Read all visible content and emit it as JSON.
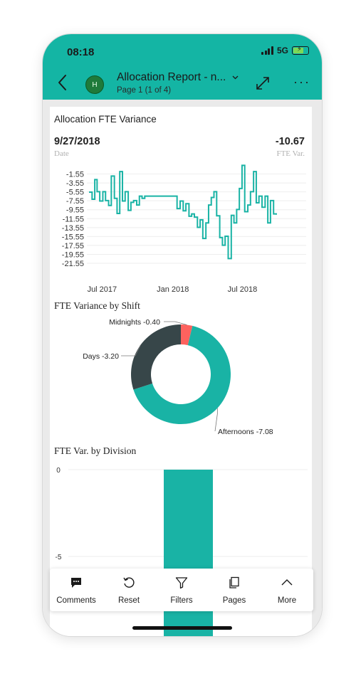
{
  "status_bar": {
    "time": "08:18",
    "network": "5G"
  },
  "header": {
    "avatar_initial": "H",
    "report_title": "Allocation Report - n...",
    "page_indicator": "Page 1 (1 of 4)",
    "back_icon": "chevron-left-icon",
    "expand_icon": "expand-diagonal-icon",
    "more_icon": "more-horizontal-icon"
  },
  "colors": {
    "header_teal": "#14b5a4",
    "series_teal": "#19b3a5",
    "dark_gray": "#374649",
    "red": "#fd625e",
    "avatar_green": "#1f7a3a"
  },
  "report": {
    "variance_card": {
      "title": "Allocation FTE Variance",
      "date_value": "9/27/2018",
      "date_label": "Date",
      "var_value": "-10.67",
      "var_label": "FTE Var."
    },
    "shift_title": "FTE Variance by Shift",
    "division_title": "FTE Var. by Division"
  },
  "chart_data": [
    {
      "type": "line",
      "series": [
        {
          "x": [
            "2017-05-28",
            "2017-06-05",
            "2017-06-12",
            "2017-06-18",
            "2017-06-25",
            "2017-07-03",
            "2017-07-10",
            "2017-07-18",
            "2017-07-25",
            "2017-08-02",
            "2017-08-09",
            "2017-08-16",
            "2017-08-23",
            "2017-08-30",
            "2017-09-07",
            "2017-09-14",
            "2017-09-21",
            "2017-09-29",
            "2017-10-06",
            "2017-10-13",
            "2017-10-20",
            "2017-10-27",
            "2017-11-04",
            "2017-11-11",
            "2017-11-18",
            "2017-11-26",
            "2017-12-04",
            "2017-12-12",
            "2017-12-20",
            "2017-12-28",
            "2018-01-05",
            "2018-01-12",
            "2018-01-20",
            "2018-01-28",
            "2018-02-04",
            "2018-02-12",
            "2018-02-19",
            "2018-02-26",
            "2018-03-06",
            "2018-03-13",
            "2018-03-20",
            "2018-03-28",
            "2018-04-04",
            "2018-04-11",
            "2018-04-18",
            "2018-04-25",
            "2018-05-03",
            "2018-05-10",
            "2018-05-17",
            "2018-05-25",
            "2018-06-02",
            "2018-06-09",
            "2018-06-16",
            "2018-06-23",
            "2018-06-30",
            "2018-07-07",
            "2018-07-15",
            "2018-07-22",
            "2018-07-30",
            "2018-08-06",
            "2018-08-13",
            "2018-08-21",
            "2018-08-29",
            "2018-09-05",
            "2018-09-12",
            "2018-09-20",
            "2018-09-27"
          ],
          "y": [
            -5.6,
            -7.2,
            -2.8,
            -5.5,
            -7.6,
            -5.5,
            -7.5,
            -8.6,
            -2.0,
            -7.0,
            -10.4,
            -1.0,
            -7.6,
            -5.5,
            -9.7,
            -7.9,
            -7.5,
            -8.5,
            -6.5,
            -7.0,
            -6.5,
            -6.5,
            -6.5,
            -6.5,
            -6.5,
            -6.5,
            -6.5,
            -6.5,
            -6.5,
            -6.5,
            -6.5,
            -9.3,
            -7.6,
            -9.8,
            -8.2,
            -11.0,
            -10.5,
            -11.2,
            -13.5,
            -11.8,
            -16.0,
            -12.5,
            -8.5,
            -6.8,
            -5.5,
            -10.9,
            -15.8,
            -17.5,
            -15.5,
            -20.5,
            -10.8,
            -12.5,
            -9.5,
            -4.8,
            0.4,
            -10.0,
            -8.5,
            -5.5,
            -1.0,
            -8.0,
            -6.5,
            -9.0,
            -6.5,
            -12.5,
            -7.5,
            -10.5,
            -10.67
          ]
        }
      ],
      "title": "Allocation FTE Variance",
      "yticks": [
        "-1.55",
        "-3.55",
        "-5.55",
        "-7.55",
        "-9.55",
        "-11.55",
        "-13.55",
        "-15.55",
        "-17.55",
        "-19.55",
        "-21.55"
      ],
      "xticks": [
        "Jul 2017",
        "Jan 2018",
        "Jul 2018"
      ],
      "ylim": [
        -21.55,
        0.45
      ],
      "grid": true
    },
    {
      "type": "pie",
      "title": "FTE Variance by Shift",
      "donut": true,
      "slices": [
        {
          "label": "Afternoons",
          "value": -7.08,
          "display": "Afternoons -7.08",
          "color": "#19b3a5"
        },
        {
          "label": "Days",
          "value": -3.2,
          "display": "Days -3.20",
          "color": "#374649"
        },
        {
          "label": "Midnights",
          "value": -0.4,
          "display": "Midnights -0.40",
          "color": "#fd625e"
        }
      ]
    },
    {
      "type": "bar",
      "title": "FTE Var. by Division",
      "yticks": [
        "0",
        "-5"
      ],
      "values_note_visible": "single teal bar extending below the visible range",
      "values": [
        -10.67
      ],
      "grid": true
    }
  ],
  "toolbar": {
    "items": [
      {
        "label": "Comments",
        "icon": "comment-icon"
      },
      {
        "label": "Reset",
        "icon": "reset-icon"
      },
      {
        "label": "Filters",
        "icon": "filter-icon"
      },
      {
        "label": "Pages",
        "icon": "pages-icon"
      },
      {
        "label": "More",
        "icon": "chevron-up-icon"
      }
    ]
  }
}
